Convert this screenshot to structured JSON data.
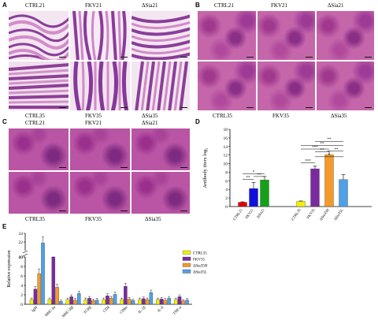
{
  "panels": {
    "A": {
      "label": "A",
      "top": [
        "CTRL21",
        "FKV21",
        "ΔSia21"
      ],
      "bottom": [
        "CTRL35",
        "FKV35",
        "ΔSia35"
      ]
    },
    "B": {
      "label": "B",
      "top": [
        "CTRL21",
        "FKV21",
        "ΔSia21"
      ],
      "bottom": [
        "CTRL35",
        "FKV35",
        "ΔSia35"
      ]
    },
    "C": {
      "label": "C",
      "top": [
        "CTRL21",
        "FKV21",
        "ΔSia21"
      ],
      "bottom": [
        "CTRL35",
        "FKV35",
        "ΔSia35"
      ]
    },
    "D": {
      "label": "D"
    },
    "E": {
      "label": "E"
    }
  },
  "colors": {
    "ctrl": "#f0f000",
    "fkv": "#7b2aa0",
    "high": "#f39a2a",
    "low": "#4fa0e6",
    "ctrl_red": "#e00000",
    "fkv_blue": "#1010dd",
    "sia_green": "#16a018"
  },
  "chart_data": [
    {
      "type": "bar",
      "ylabel": "Antibody titers log₂",
      "ylim": [
        0,
        18
      ],
      "yticks": [
        "0",
        "2",
        "4",
        "6",
        "8",
        "10",
        "12",
        "14",
        "16",
        "18"
      ],
      "groups": [
        {
          "categories": [
            "CTRL21",
            "FKV21",
            "ΔSia21"
          ],
          "values": [
            1.0,
            4.2,
            6.2
          ]
        },
        {
          "categories": [
            "CTRL35",
            "FKV35",
            "ΔSia35H",
            "ΔSia35L"
          ],
          "values": [
            1.2,
            8.8,
            12.1,
            6.3
          ]
        }
      ],
      "annotations": [
        "*",
        "**",
        "**",
        "***",
        "***",
        "**",
        "**",
        "*",
        "**",
        "**"
      ]
    },
    {
      "type": "bar",
      "ylabel": "Relative expression",
      "ylim": [
        0,
        24
      ],
      "yticks": [
        "0",
        "2",
        "4",
        "6",
        "8",
        "10",
        "20",
        "22",
        "24"
      ],
      "categories": [
        "IgM",
        "MHC-Iα",
        "MHC-IIβ",
        "TCRβ",
        "CD4",
        "CD8α",
        "IL-1β",
        "IL-8",
        "TNF-α"
      ],
      "legend": [
        "CTRL35",
        "FKV35",
        "ΔSia35H",
        "ΔSia35L"
      ],
      "series": [
        {
          "name": "CTRL35",
          "values": [
            1.0,
            1.0,
            1.0,
            1.0,
            1.0,
            1.0,
            1.0,
            1.0,
            1.0
          ]
        },
        {
          "name": "FKV35",
          "values": [
            3.2,
            10.5,
            1.6,
            1.3,
            1.8,
            3.8,
            1.2,
            1.1,
            1.6
          ]
        },
        {
          "name": "ΔSia35H",
          "values": [
            6.5,
            3.6,
            0.9,
            0.8,
            1.3,
            1.1,
            1.0,
            0.9,
            0.7
          ]
        },
        {
          "name": "ΔSia35L",
          "values": [
            21.8,
            0.6,
            2.3,
            0.9,
            2.1,
            0.8,
            2.5,
            1.3,
            0.9
          ]
        }
      ]
    }
  ]
}
